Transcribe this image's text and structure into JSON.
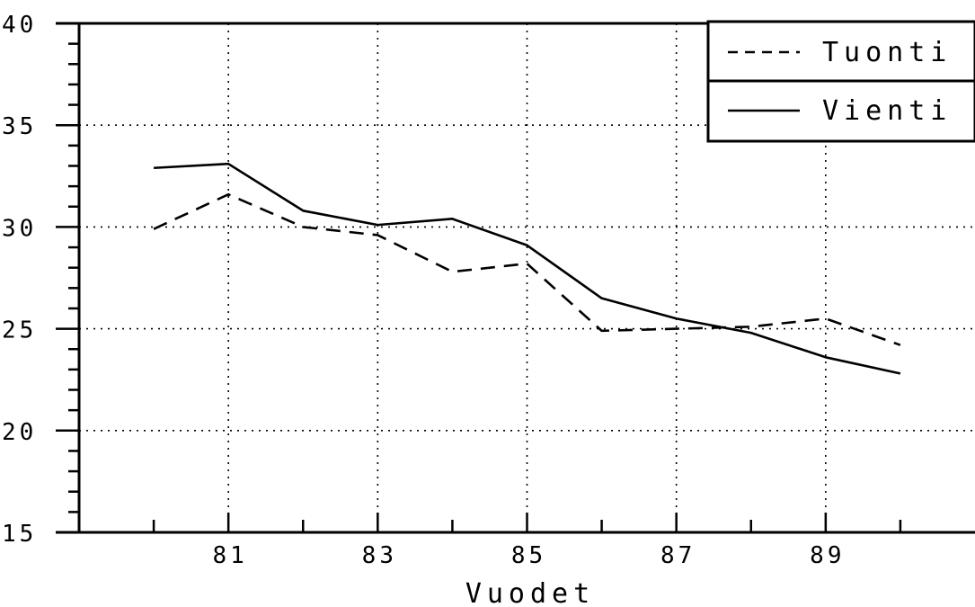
{
  "chart_data": {
    "type": "line",
    "title": "",
    "xlabel": "Vuodet",
    "ylabel": "",
    "x": [
      80,
      81,
      82,
      83,
      84,
      85,
      86,
      87,
      88,
      89,
      90
    ],
    "x_tick_labels": [
      "81",
      "83",
      "85",
      "87",
      "89"
    ],
    "x_tick_values": [
      81,
      83,
      85,
      87,
      89
    ],
    "y_tick_labels": [
      "15",
      "20",
      "25",
      "30",
      "35",
      "40"
    ],
    "y_tick_values": [
      15,
      20,
      25,
      30,
      35,
      40
    ],
    "xlim": [
      79,
      91
    ],
    "ylim": [
      15,
      40
    ],
    "grid": "dotted",
    "legend_position": "top-right",
    "series": [
      {
        "name": "Tuonti",
        "style": "dashed",
        "values": [
          29.9,
          31.6,
          30.0,
          29.6,
          27.8,
          28.2,
          24.9,
          25.0,
          25.1,
          25.5,
          24.2
        ]
      },
      {
        "name": "Vienti",
        "style": "solid",
        "values": [
          32.9,
          33.1,
          30.8,
          30.1,
          30.4,
          29.1,
          26.5,
          25.5,
          24.8,
          23.6,
          22.8
        ]
      }
    ]
  }
}
